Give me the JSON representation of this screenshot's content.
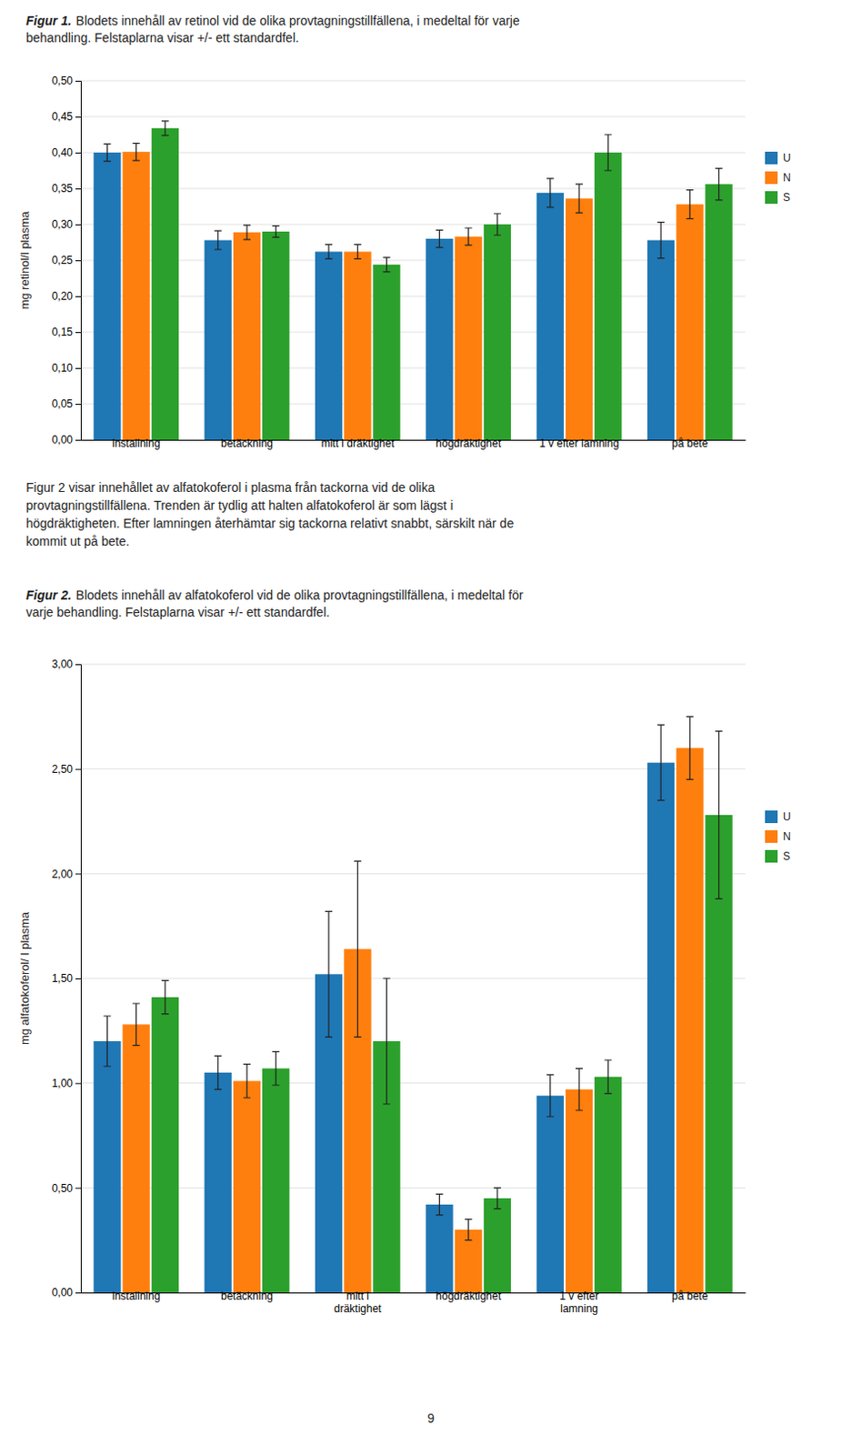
{
  "chart_data": [
    {
      "type": "bar",
      "title": "Figur 1.",
      "subtitle": "Blodets innehåll av retinol vid de olika provtagningstillfällena, i medeltal för varje\nbehandling. Felstaplarna visar +/- ett standardfel.",
      "ylabel": "mg retinol/l plasma",
      "categories": [
        "installning",
        "betäckning",
        "mitt i dräktighet",
        "högdräktighet",
        "1 v efter lamning",
        "på bete"
      ],
      "series": [
        {
          "name": "U",
          "values": [
            0.4,
            0.278,
            0.262,
            0.28,
            0.344,
            0.278
          ],
          "errors": [
            0.012,
            0.013,
            0.01,
            0.012,
            0.02,
            0.025
          ]
        },
        {
          "name": "N",
          "values": [
            0.401,
            0.289,
            0.262,
            0.283,
            0.336,
            0.328
          ],
          "errors": [
            0.012,
            0.01,
            0.01,
            0.012,
            0.02,
            0.02
          ]
        },
        {
          "name": "S",
          "values": [
            0.434,
            0.29,
            0.244,
            0.3,
            0.4,
            0.356
          ],
          "errors": [
            0.01,
            0.008,
            0.01,
            0.015,
            0.025,
            0.022
          ]
        }
      ],
      "ylim": [
        0.0,
        0.5
      ],
      "yticks": [
        {
          "value": 0.0,
          "label": "0,00"
        },
        {
          "value": 0.05,
          "label": "0,05"
        },
        {
          "value": 0.1,
          "label": "0,10"
        },
        {
          "value": 0.15,
          "label": "0,15"
        },
        {
          "value": 0.2,
          "label": "0,20"
        },
        {
          "value": 0.25,
          "label": "0,25"
        },
        {
          "value": 0.3,
          "label": "0,30"
        },
        {
          "value": 0.35,
          "label": "0,35"
        },
        {
          "value": 0.4,
          "label": "0,40"
        },
        {
          "value": 0.45,
          "label": "0,45"
        },
        {
          "value": 0.5,
          "label": "0,50"
        }
      ],
      "grid": true,
      "legend": "right",
      "annotations": [
        "Figur 2 visar innehållet av alfatokoferol i plasma från tackorna vid de olika\nprovtagningstillfällena. Trenden är tydlig att halten alfatokoferol är som lägst i\nhögdräktigheten. Efter lamningen återhämtar sig tackorna relativt snabbt, särskilt när de\nkommit ut på bete."
      ]
    },
    {
      "type": "bar",
      "title": "Figur 2.",
      "subtitle": "Blodets innehåll av alfatokoferol vid de olika provtagningstillfällena, i medeltal för\nvarje behandling. Felstaplarna visar +/- ett standardfel.",
      "ylabel": "mg alfatokoferol/ l plasma",
      "categories": [
        "installning",
        "betäckning",
        "mitt i\ndräktighet",
        "högdräktighet",
        "1 v efter\nlamning",
        "på bete"
      ],
      "series": [
        {
          "name": "U",
          "values": [
            1.2,
            1.05,
            1.52,
            0.42,
            0.94,
            2.53
          ],
          "errors": [
            0.12,
            0.08,
            0.3,
            0.05,
            0.1,
            0.18
          ]
        },
        {
          "name": "N",
          "values": [
            1.28,
            1.01,
            1.64,
            0.3,
            0.97,
            2.6
          ],
          "errors": [
            0.1,
            0.08,
            0.42,
            0.05,
            0.1,
            0.15
          ]
        },
        {
          "name": "S",
          "values": [
            1.41,
            1.07,
            1.2,
            0.45,
            1.03,
            2.28
          ],
          "errors": [
            0.08,
            0.08,
            0.3,
            0.05,
            0.08,
            0.4
          ]
        }
      ],
      "ylim": [
        0.0,
        3.0
      ],
      "yticks": [
        {
          "value": 0.0,
          "label": "0,00"
        },
        {
          "value": 0.5,
          "label": "0,50"
        },
        {
          "value": 1.0,
          "label": "1,00"
        },
        {
          "value": 1.5,
          "label": "1,50"
        },
        {
          "value": 2.0,
          "label": "2,00"
        },
        {
          "value": 2.5,
          "label": "2,50"
        },
        {
          "value": 3.0,
          "label": "3,00"
        }
      ],
      "grid": true,
      "legend": "right",
      "annotations": [
        "9"
      ]
    }
  ]
}
